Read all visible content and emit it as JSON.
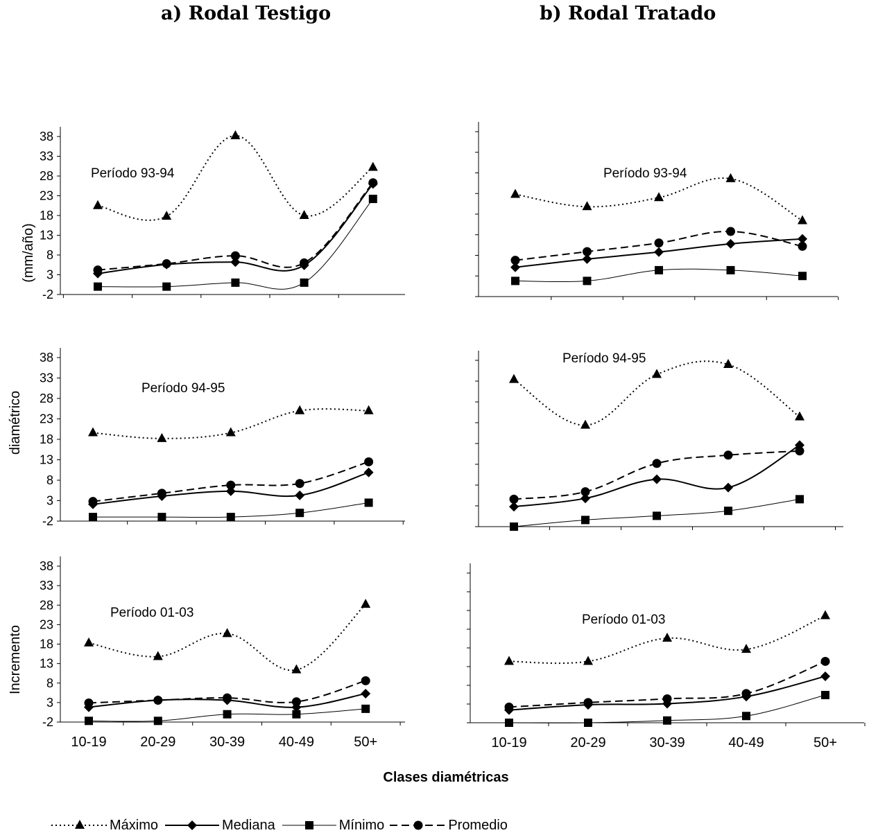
{
  "titles": {
    "a": "a) Rodal Testigo",
    "b": "b) Rodal Tratado"
  },
  "y_axis_label_parts": [
    "Incremento",
    "diamétrico",
    "(mm/año)"
  ],
  "x_axis_label": "Clases diamétricas",
  "categories": [
    "10-19",
    "20-29",
    "30-39",
    "40-49",
    "50+"
  ],
  "y_ticks": [
    -2,
    3,
    8,
    13,
    18,
    23,
    28,
    33,
    38
  ],
  "legend": [
    {
      "name": "Máximo",
      "style": "dotted",
      "marker": "triangle"
    },
    {
      "name": "Mediana",
      "style": "solid-thick",
      "marker": "diamond"
    },
    {
      "name": "Mínimo",
      "style": "solid-thin",
      "marker": "square"
    },
    {
      "name": "Promedio",
      "style": "dashed",
      "marker": "circle"
    }
  ],
  "chart_data": [
    {
      "type": "line",
      "panel": "a",
      "period": "Período 93-94",
      "categories": [
        "10-19",
        "20-29",
        "30-39",
        "40-49",
        "50+"
      ],
      "ylim": [
        -2,
        40
      ],
      "y_ticks_shown": true,
      "series": [
        {
          "name": "Máximo",
          "values": [
            20.5,
            17.8,
            38.2,
            18.0,
            30.2
          ]
        },
        {
          "name": "Mediana",
          "values": [
            3.3,
            5.6,
            6.2,
            5.4,
            26.0
          ]
        },
        {
          "name": "Mínimo",
          "values": [
            0,
            0,
            1.0,
            1.0,
            22.2
          ]
        },
        {
          "name": "Promedio",
          "values": [
            4.2,
            5.8,
            7.8,
            6.0,
            26.3
          ]
        }
      ]
    },
    {
      "type": "line",
      "panel": "a",
      "period": "Período 94-95",
      "categories": [
        "10-19",
        "20-29",
        "30-39",
        "40-49",
        "50+"
      ],
      "ylim": [
        -2,
        40
      ],
      "y_ticks_shown": true,
      "series": [
        {
          "name": "Máximo",
          "values": [
            19.6,
            18.2,
            19.6,
            25.0,
            25.0
          ]
        },
        {
          "name": "Mediana",
          "values": [
            2.1,
            4.1,
            5.3,
            4.3,
            9.9
          ]
        },
        {
          "name": "Mínimo",
          "values": [
            -1.0,
            -1.0,
            -1.0,
            0,
            2.5
          ]
        },
        {
          "name": "Promedio",
          "values": [
            2.8,
            4.8,
            6.8,
            7.2,
            12.5
          ]
        }
      ]
    },
    {
      "type": "line",
      "panel": "a",
      "period": "Período 01-03",
      "categories": [
        "10-19",
        "20-29",
        "30-39",
        "40-49",
        "50+"
      ],
      "ylim": [
        -2,
        40
      ],
      "y_ticks_shown": true,
      "series": [
        {
          "name": "Máximo",
          "values": [
            18.3,
            14.8,
            20.7,
            11.4,
            28.2
          ]
        },
        {
          "name": "Mediana",
          "values": [
            1.8,
            3.6,
            3.6,
            1.8,
            5.3
          ]
        },
        {
          "name": "Mínimo",
          "values": [
            -1.7,
            -1.7,
            0,
            0,
            1.4
          ]
        },
        {
          "name": "Promedio",
          "values": [
            2.9,
            3.6,
            4.2,
            3.2,
            8.6
          ]
        }
      ]
    },
    {
      "type": "line",
      "panel": "b",
      "period": "Período 93-94",
      "categories": [
        "10-19",
        "20-29",
        "30-39",
        "40-49",
        "50+"
      ],
      "y_ticks_shown": false,
      "series": [
        {
          "name": "Máximo",
          "values": [
            22.8,
            19.8,
            22.0,
            26.6,
            16.4
          ]
        },
        {
          "name": "Mediana",
          "values": [
            5.1,
            7.1,
            8.8,
            10.8,
            12.0
          ]
        },
        {
          "name": "Mínimo",
          "values": [
            1.8,
            1.8,
            4.4,
            4.4,
            3.0
          ]
        },
        {
          "name": "Promedio",
          "values": [
            6.8,
            8.9,
            11.0,
            13.8,
            10.2
          ]
        }
      ]
    },
    {
      "type": "line",
      "panel": "b",
      "period": "Período 94-95",
      "categories": [
        "10-19",
        "20-29",
        "30-39",
        "40-49",
        "50+"
      ],
      "y_ticks_shown": false,
      "series": [
        {
          "name": "Máximo",
          "values": [
            33.4,
            22.4,
            34.6,
            37.0,
            24.4
          ]
        },
        {
          "name": "Mediana",
          "values": [
            2.8,
            4.8,
            9.4,
            7.4,
            17.6
          ]
        },
        {
          "name": "Mínimo",
          "values": [
            -2.0,
            -0.4,
            0.6,
            1.8,
            4.6
          ]
        },
        {
          "name": "Promedio",
          "values": [
            4.6,
            6.4,
            13.2,
            15.2,
            16.2
          ]
        }
      ]
    },
    {
      "type": "line",
      "panel": "b",
      "period": "Período 01-03",
      "categories": [
        "10-19",
        "20-29",
        "30-39",
        "40-49",
        "50+"
      ],
      "y_ticks_shown": false,
      "series": [
        {
          "name": "Máximo",
          "values": [
            14.4,
            14.4,
            20.6,
            17.6,
            26.6
          ]
        },
        {
          "name": "Mediana",
          "values": [
            1.4,
            2.8,
            3.1,
            5.0,
            10.4
          ]
        },
        {
          "name": "Mínimo",
          "values": [
            -2.0,
            -2.0,
            -1.4,
            -0.2,
            5.4
          ]
        },
        {
          "name": "Promedio",
          "values": [
            2.2,
            3.4,
            4.4,
            5.8,
            14.4
          ]
        }
      ]
    }
  ]
}
